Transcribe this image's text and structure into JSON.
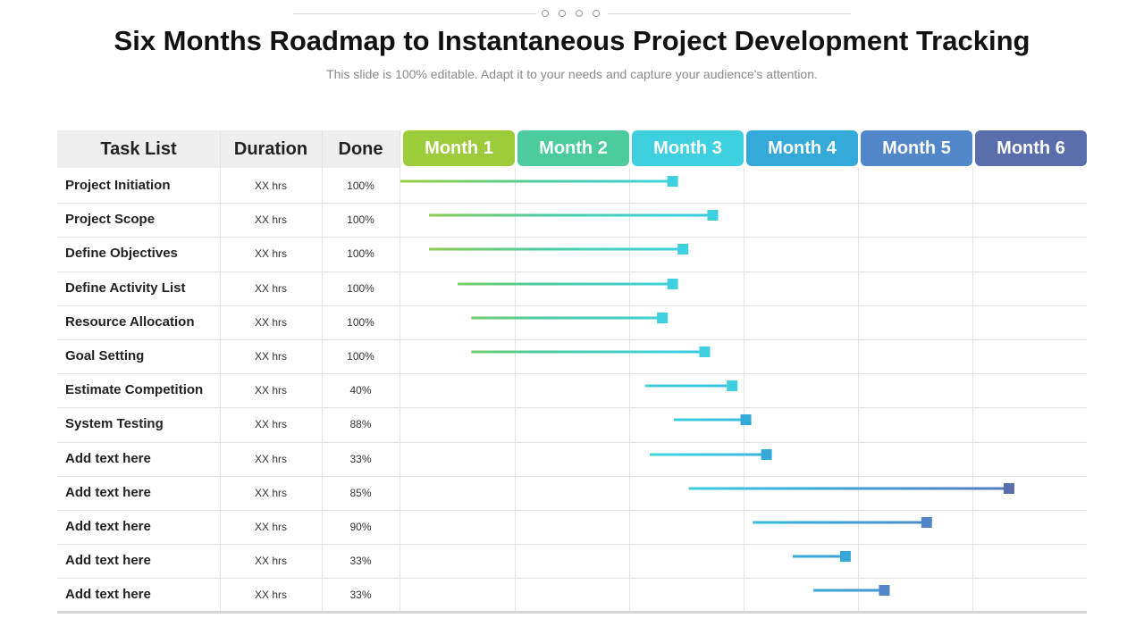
{
  "title": "Six Months Roadmap to Instantaneous Project Development Tracking",
  "subtitle": "This slide is 100% editable. Adapt it to your needs and capture your audience's attention.",
  "headers": {
    "task": "Task List",
    "duration": "Duration",
    "done": "Done"
  },
  "colors": {
    "month_1": "#9ccc3c",
    "month_2": "#4ccc9e",
    "month_3": "#3ed0df",
    "month_4": "#36a9db",
    "month_5": "#5187c8",
    "month_6": "#5a6ead"
  },
  "chart_data": {
    "type": "gantt",
    "title": "Six Months Roadmap to Instantaneous Project Development Tracking",
    "months": [
      "Month 1",
      "Month 2",
      "Month 3",
      "Month 4",
      "Month 5",
      "Month 6"
    ],
    "xlim": [
      0,
      6
    ],
    "x_unit": "months",
    "tasks": [
      {
        "name": "Project Initiation",
        "duration": "XX  hrs",
        "done": "100%",
        "start": 0.0,
        "end": 2.38
      },
      {
        "name": "Project Scope",
        "duration": "XX  hrs",
        "done": "100%",
        "start": 0.25,
        "end": 2.73
      },
      {
        "name": "Define Objectives",
        "duration": "XX  hrs",
        "done": "100%",
        "start": 0.25,
        "end": 2.47
      },
      {
        "name": "Define Activity List",
        "duration": "XX  hrs",
        "done": "100%",
        "start": 0.5,
        "end": 2.38
      },
      {
        "name": "Resource Allocation",
        "duration": "XX  hrs",
        "done": "100%",
        "start": 0.62,
        "end": 2.29
      },
      {
        "name": "Goal Setting",
        "duration": "XX  hrs",
        "done": "100%",
        "start": 0.62,
        "end": 2.66
      },
      {
        "name": "Estimate Competition",
        "duration": "XX  hrs",
        "done": "40%",
        "start": 2.14,
        "end": 2.9
      },
      {
        "name": "System  Testing",
        "duration": "XX  hrs",
        "done": "88%",
        "start": 2.39,
        "end": 3.02
      },
      {
        "name": "Add  text here",
        "duration": "XX  hrs",
        "done": "33%",
        "start": 2.18,
        "end": 3.2
      },
      {
        "name": "Add  text here",
        "duration": "XX  hrs",
        "done": "85%",
        "start": 2.52,
        "end": 5.32
      },
      {
        "name": "Add  text here",
        "duration": "XX  hrs",
        "done": "90%",
        "start": 3.08,
        "end": 4.6
      },
      {
        "name": "Add  text here",
        "duration": "XX  hrs",
        "done": "33%",
        "start": 3.43,
        "end": 3.89
      },
      {
        "name": "Add  text here",
        "duration": "XX  hrs",
        "done": "33%",
        "start": 3.61,
        "end": 4.23
      }
    ]
  }
}
